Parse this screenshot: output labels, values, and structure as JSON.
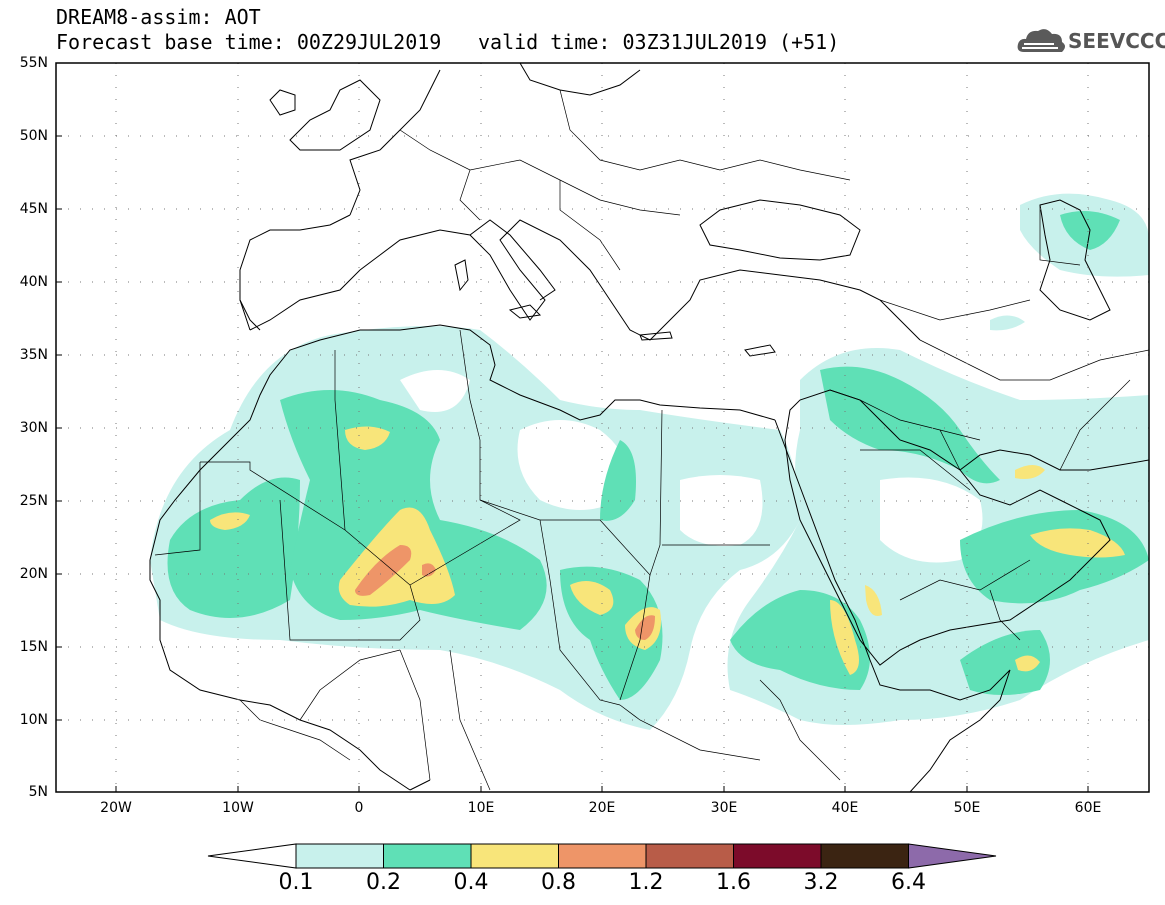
{
  "header": {
    "line1": "DREAM8-assim: AOT",
    "line2": "Forecast base time: 00Z29JUL2019",
    "valid": "valid time: 03Z31JUL2019 (+51)"
  },
  "logo": {
    "text": "SEEVCCC",
    "icon": "cloud-icon"
  },
  "map": {
    "lat_labels": [
      "55N",
      "50N",
      "45N",
      "40N",
      "35N",
      "30N",
      "25N",
      "20N",
      "15N",
      "10N",
      "5N"
    ],
    "lon_labels": [
      "20W",
      "10W",
      "0",
      "10E",
      "20E",
      "30E",
      "40E",
      "50E",
      "60E"
    ]
  },
  "colorbar": {
    "colors": [
      "#ffffff",
      "#c8f1ec",
      "#5fe0b6",
      "#f8e57a",
      "#ee9568",
      "#b85c48",
      "#7c0b2a",
      "#3b2412",
      "#8d6aaa"
    ],
    "labels": [
      "0.1",
      "0.2",
      "0.4",
      "0.8",
      "1.2",
      "1.6",
      "3.2",
      "6.4"
    ]
  }
}
